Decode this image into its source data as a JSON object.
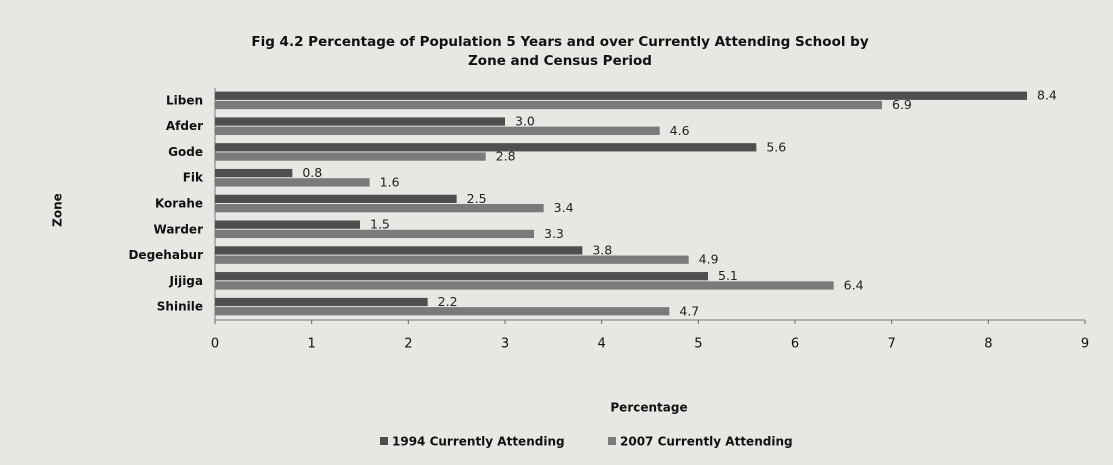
{
  "chart_data": {
    "type": "barh",
    "title": "Fig 4.2 Percentage of Population 5 Years and over Currently Attending School by",
    "subtitle": "Zone and Census Period",
    "x_label": "Percentage",
    "y_label": "Zone",
    "categories": [
      "Liben",
      "Afder",
      "Gode",
      "Fik",
      "Korahe",
      "Warder",
      "Degehabur",
      "Jijiga",
      "Shinile"
    ],
    "series": [
      {
        "name": "1994 Currently Attending",
        "color": "#4f4f4f",
        "values": [
          8.4,
          3.0,
          5.6,
          0.8,
          2.5,
          1.5,
          3.8,
          5.1,
          2.2
        ]
      },
      {
        "name": "2007 Currently Attending",
        "color": "#7a7a7a",
        "values": [
          6.9,
          4.6,
          2.8,
          1.6,
          3.4,
          3.3,
          4.9,
          6.4,
          4.7
        ]
      }
    ],
    "value_labels": [
      [
        "8.4",
        "3.0",
        "5.6",
        "0.8",
        "2.5",
        "1.5",
        "3.8",
        "5.1",
        "2.2"
      ],
      [
        "6.9",
        "4.6",
        "2.8",
        "1.6",
        "3.4",
        "3.3",
        "4.9",
        "6.4",
        "4.7"
      ]
    ],
    "xlim": [
      0,
      9
    ],
    "xticks": [
      0,
      1,
      2,
      3,
      4,
      5,
      6,
      7,
      8,
      9
    ],
    "legend": "bottom"
  }
}
